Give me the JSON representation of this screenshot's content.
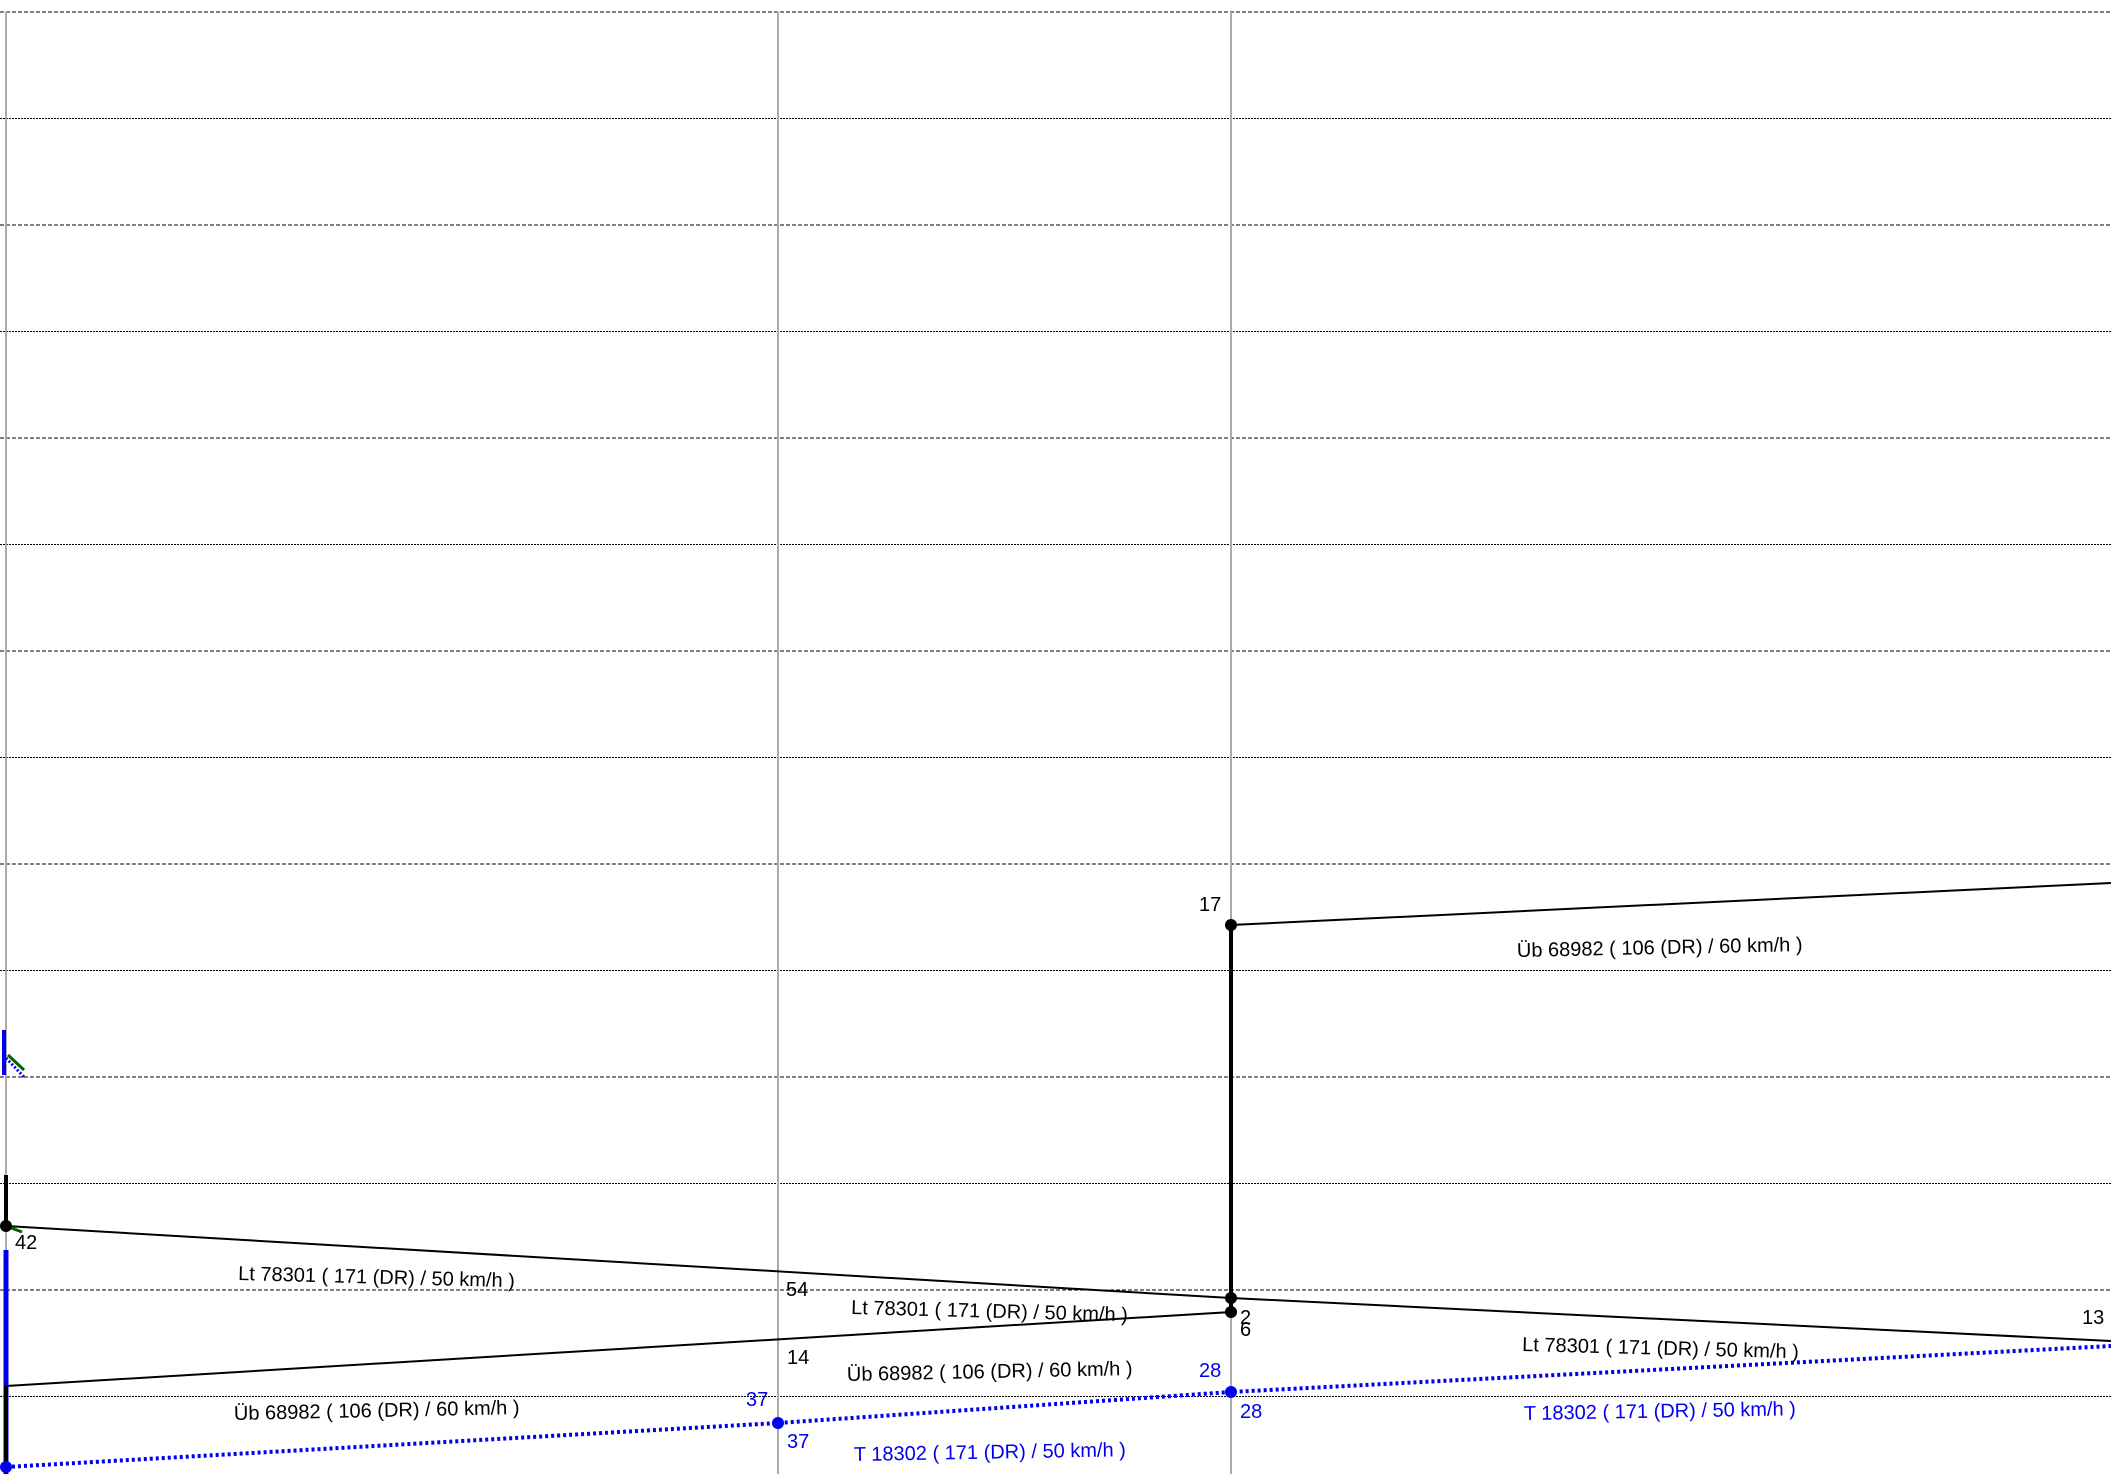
{
  "chart_data": {
    "type": "line",
    "title": "",
    "xlabel": "",
    "ylabel": "",
    "grid": true,
    "colors": {
      "black_train": "#000000",
      "blue_train": "#0000ee",
      "green_fragment": "#006600",
      "grid_station": "#aaaaaa",
      "grid_time": "#000000"
    },
    "series": [
      {
        "name": "Lt 78301 ( 171 (DR) / 50 km/h )",
        "color": "#000000",
        "style": "solid",
        "points": [
          {
            "station": 0,
            "minute": 42
          },
          {
            "station": 2,
            "minute": 54
          },
          {
            "station": 3,
            "minute": 13
          }
        ],
        "point_labels": [
          {
            "at": 0,
            "text": "42"
          },
          {
            "at": 1,
            "text": "54"
          },
          {
            "at": 2,
            "text": "13"
          }
        ],
        "segment_labels": [
          {
            "segment": 0,
            "text": "Lt 78301 ( 171 (DR) / 50 km/h )"
          },
          {
            "segment": 1,
            "text": "Lt 78301 ( 171 (DR) / 50 km/h )"
          }
        ]
      },
      {
        "name": "Üb 68982 ( 106 (DR) / 60 km/h )",
        "color": "#000000",
        "style": "solid",
        "points": [
          {
            "station": 0,
            "minute": 0
          },
          {
            "station": 1,
            "minute": 14
          },
          {
            "station": 2,
            "minute": 2
          },
          {
            "station": 2,
            "minute": 17
          },
          {
            "station": 3,
            "minute": 9
          }
        ],
        "point_labels": [
          {
            "at": 1,
            "text": "14"
          },
          {
            "at": 2,
            "text": "2"
          },
          {
            "at": 2,
            "text": "6"
          },
          {
            "at": 3,
            "text": "17"
          }
        ],
        "segment_labels": [
          {
            "segment": 0,
            "text": "Üb 68982 ( 106 (DR) / 60 km/h )"
          },
          {
            "segment": 1,
            "text": "Lt 78301 ( 171 (DR) / 50 km/h )"
          },
          {
            "segment": 1,
            "text": "Üb 68982 ( 106 (DR) / 60 km/h )"
          },
          {
            "segment": 3,
            "text": "Üb 68982 ( 106 (DR) / 60 km/h )"
          }
        ]
      },
      {
        "name": "T 18302 ( 171 (DR) / 50 km/h )",
        "color": "#0000ee",
        "style": "dotted",
        "points": [
          {
            "station": 0,
            "minute": 45
          },
          {
            "station": 1,
            "minute": 37
          },
          {
            "station": 2,
            "minute": 28
          },
          {
            "station": 3,
            "minute": 21
          }
        ],
        "point_labels": [
          {
            "at": 1,
            "text": "37"
          },
          {
            "at": 1,
            "text": "37"
          },
          {
            "at": 2,
            "text": "28"
          },
          {
            "at": 2,
            "text": "28"
          }
        ],
        "segment_labels": [
          {
            "segment": 1,
            "text": "T 18302 ( 171 (DR) / 50 km/h )"
          },
          {
            "segment": 2,
            "text": "T 18302 ( 171 (DR) / 50 km/h )"
          }
        ]
      }
    ]
  }
}
